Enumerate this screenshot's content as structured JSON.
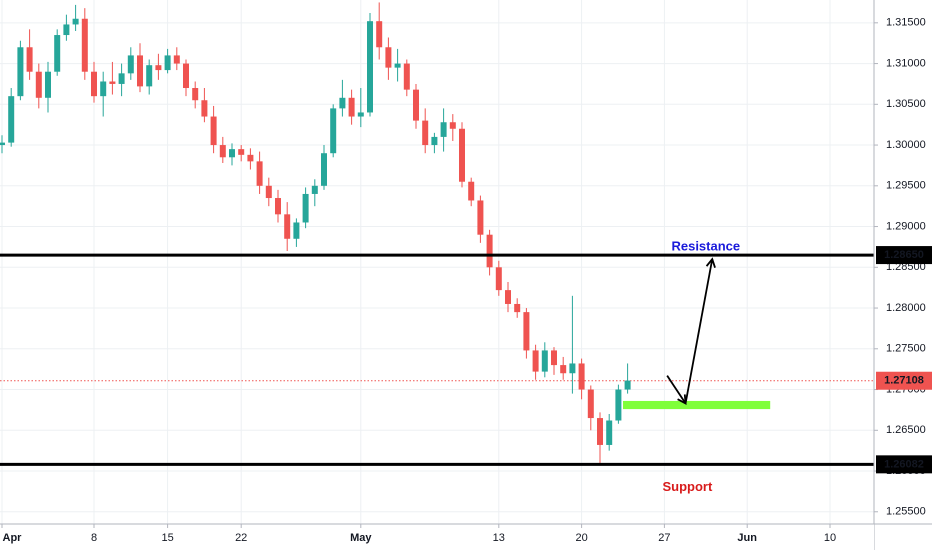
{
  "chart_data": {
    "type": "candlestick",
    "y_axis": {
      "position": "right",
      "range": [
        1.2535,
        1.3178
      ],
      "tick_labels": [
        "1.31500",
        "1.31000",
        "1.30500",
        "1.30000",
        "1.29500",
        "1.29000",
        "1.28500",
        "1.28000",
        "1.27500",
        "1.27000",
        "1.26500",
        "1.26000",
        "1.25500"
      ],
      "tick_values": [
        1.315,
        1.31,
        1.305,
        1.3,
        1.295,
        1.29,
        1.285,
        1.28,
        1.275,
        1.27,
        1.265,
        1.26,
        1.255
      ]
    },
    "x_axis": {
      "position": "bottom",
      "tick_labels": [
        "Apr",
        "8",
        "15",
        "22",
        "May",
        "13",
        "20",
        "27",
        "Jun",
        "10"
      ],
      "tick_index": [
        0,
        10,
        18,
        26,
        39,
        54,
        63,
        72,
        81,
        90
      ],
      "tick_bold": [
        true,
        false,
        false,
        false,
        true,
        false,
        false,
        false,
        true,
        false
      ]
    },
    "grid": true,
    "current_price": {
      "value": 1.27108,
      "label": "1.27108",
      "color": "#ef5350"
    },
    "horizontal_levels": [
      {
        "value": 1.2865,
        "label": "1.28650",
        "color": "#000000"
      },
      {
        "value": 1.26082,
        "label": "1.26082",
        "color": "#000000"
      }
    ],
    "zones": [
      {
        "from_index": 67.5,
        "to_index": 83.5,
        "top": 1.2686,
        "bottom": 1.2676,
        "color": "#7fff3a"
      }
    ],
    "arrows": [
      {
        "points": [
          [
            72.3,
            1.2717
          ],
          [
            74.3,
            1.2683
          ]
        ]
      },
      {
        "points": [
          [
            74.3,
            1.2683
          ],
          [
            77.2,
            1.286
          ]
        ]
      }
    ],
    "annotations": [
      {
        "text": "Resistance",
        "index": 76.5,
        "price": 1.2875,
        "color": "#1a1adb"
      },
      {
        "text": "Support",
        "index": 74.5,
        "price": 1.258,
        "color": "#d81b1b"
      }
    ],
    "colors": {
      "up": "#26a69a",
      "down": "#ef5350"
    },
    "candles": [
      [
        1.3,
        1.3012,
        1.299,
        1.3003
      ],
      [
        1.3003,
        1.307,
        1.2998,
        1.306
      ],
      [
        1.306,
        1.3128,
        1.3055,
        1.312
      ],
      [
        1.312,
        1.3142,
        1.308,
        1.309
      ],
      [
        1.309,
        1.31,
        1.3045,
        1.3058
      ],
      [
        1.3058,
        1.3102,
        1.304,
        1.309
      ],
      [
        1.309,
        1.3142,
        1.3085,
        1.3135
      ],
      [
        1.3135,
        1.316,
        1.3128,
        1.3148
      ],
      [
        1.3148,
        1.3172,
        1.314,
        1.3155
      ],
      [
        1.3155,
        1.3168,
        1.308,
        1.309
      ],
      [
        1.309,
        1.3102,
        1.3052,
        1.306
      ],
      [
        1.306,
        1.309,
        1.3035,
        1.3078
      ],
      [
        1.3078,
        1.3102,
        1.3062,
        1.3075
      ],
      [
        1.3075,
        1.31,
        1.306,
        1.3088
      ],
      [
        1.3088,
        1.312,
        1.308,
        1.311
      ],
      [
        1.311,
        1.3125,
        1.3065,
        1.3072
      ],
      [
        1.3072,
        1.3105,
        1.3062,
        1.3098
      ],
      [
        1.3098,
        1.3112,
        1.308,
        1.3092
      ],
      [
        1.3092,
        1.3118,
        1.3088,
        1.311
      ],
      [
        1.311,
        1.312,
        1.3092,
        1.31
      ],
      [
        1.31,
        1.3105,
        1.306,
        1.307
      ],
      [
        1.307,
        1.3078,
        1.3045,
        1.3055
      ],
      [
        1.3055,
        1.307,
        1.3028,
        1.3035
      ],
      [
        1.3035,
        1.3048,
        1.299,
        1.3
      ],
      [
        1.3,
        1.301,
        1.2978,
        1.2985
      ],
      [
        1.2985,
        1.3002,
        1.2975,
        1.2995
      ],
      [
        1.2995,
        1.3,
        1.298,
        1.2988
      ],
      [
        1.2988,
        1.2996,
        1.297,
        1.298
      ],
      [
        1.298,
        1.2992,
        1.294,
        1.295
      ],
      [
        1.295,
        1.296,
        1.2925,
        1.2935
      ],
      [
        1.2935,
        1.2945,
        1.2905,
        1.2915
      ],
      [
        1.2915,
        1.293,
        1.287,
        1.2885
      ],
      [
        1.2885,
        1.291,
        1.2875,
        1.2905
      ],
      [
        1.2905,
        1.2948,
        1.2898,
        1.294
      ],
      [
        1.294,
        1.2958,
        1.2925,
        1.295
      ],
      [
        1.295,
        1.3,
        1.2945,
        1.299
      ],
      [
        1.299,
        1.305,
        1.2985,
        1.3045
      ],
      [
        1.3045,
        1.308,
        1.3035,
        1.3058
      ],
      [
        1.3058,
        1.3068,
        1.3025,
        1.3035
      ],
      [
        1.3035,
        1.307,
        1.3022,
        1.304
      ],
      [
        1.304,
        1.3162,
        1.3035,
        1.3152
      ],
      [
        1.3152,
        1.3175,
        1.3105,
        1.312
      ],
      [
        1.312,
        1.3132,
        1.308,
        1.3095
      ],
      [
        1.3095,
        1.3118,
        1.3078,
        1.31
      ],
      [
        1.31,
        1.3105,
        1.306,
        1.3068
      ],
      [
        1.3068,
        1.3075,
        1.302,
        1.303
      ],
      [
        1.303,
        1.3045,
        1.299,
        1.3
      ],
      [
        1.3,
        1.3015,
        1.299,
        1.301
      ],
      [
        1.301,
        1.3045,
        1.2992,
        1.3028
      ],
      [
        1.3028,
        1.3038,
        1.3005,
        1.302
      ],
      [
        1.302,
        1.3028,
        1.2948,
        1.2955
      ],
      [
        1.2955,
        1.296,
        1.2925,
        1.2932
      ],
      [
        1.2932,
        1.2938,
        1.288,
        1.289
      ],
      [
        1.289,
        1.2896,
        1.284,
        1.285
      ],
      [
        1.285,
        1.2858,
        1.2815,
        1.2822
      ],
      [
        1.2822,
        1.2832,
        1.2795,
        1.2805
      ],
      [
        1.2805,
        1.2812,
        1.2788,
        1.2795
      ],
      [
        1.2795,
        1.28,
        1.2738,
        1.2748
      ],
      [
        1.2748,
        1.2755,
        1.2712,
        1.2722
      ],
      [
        1.2722,
        1.2758,
        1.2715,
        1.2748
      ],
      [
        1.2748,
        1.2752,
        1.2718,
        1.273
      ],
      [
        1.273,
        1.274,
        1.2712,
        1.272
      ],
      [
        1.272,
        1.2815,
        1.2695,
        1.2732
      ],
      [
        1.2732,
        1.2738,
        1.2688,
        1.27
      ],
      [
        1.27,
        1.2705,
        1.265,
        1.2665
      ],
      [
        1.2665,
        1.2672,
        1.2608,
        1.2632
      ],
      [
        1.2632,
        1.267,
        1.2625,
        1.2662
      ],
      [
        1.2662,
        1.2706,
        1.2658,
        1.27
      ],
      [
        1.27,
        1.2732,
        1.2695,
        1.2711
      ]
    ]
  }
}
